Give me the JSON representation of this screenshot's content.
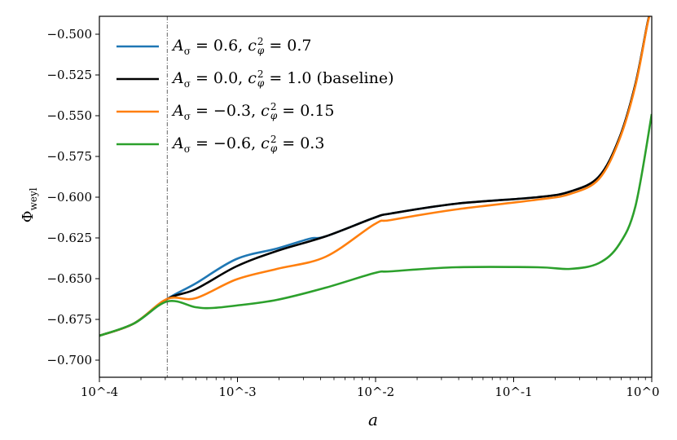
{
  "chart_data": {
    "type": "line",
    "xlabel": "a",
    "ylabel": {
      "symbol": "Φ",
      "subscript": "weyl"
    },
    "xscale": "log",
    "xlim": [
      0.0001,
      1
    ],
    "ylim": [
      -0.7105,
      -0.489
    ],
    "x_ticks": [
      "10^-4",
      "10^-3",
      "10^-2",
      "10^-1",
      "10^0"
    ],
    "y_ticks": [
      "−0.700",
      "−0.675",
      "−0.650",
      "−0.625",
      "−0.600",
      "−0.575",
      "−0.550",
      "−0.525",
      "−0.500"
    ],
    "y_tick_values": [
      -0.7,
      -0.675,
      -0.65,
      -0.625,
      -0.6,
      -0.575,
      -0.55,
      -0.525,
      -0.5
    ],
    "vline": {
      "x": 0.00031,
      "style": "dashdot",
      "color": "#555555"
    },
    "grid": false,
    "legend_placement": "top-left",
    "series": [
      {
        "name": "A_σ = 0.6, c_φ^2 = 0.7",
        "a_sigma": "0.6",
        "c_phi_sq": "0.7",
        "note": "",
        "color": "#1f77b4",
        "log10_a": [
          -4,
          -3.75,
          -3.51,
          -3.304,
          -3.009,
          -2.714,
          -2.478,
          -2.36,
          -2.006,
          -1.888,
          -1.416,
          -0.826,
          -0.59,
          -0.384,
          -0.236,
          -0.118,
          -0.029,
          0
        ],
        "y": [
          -0.685,
          -0.6775,
          -0.6625,
          -0.653,
          -0.638,
          -0.6315,
          -0.6255,
          -0.624,
          -0.6125,
          -0.61,
          -0.604,
          -0.6,
          -0.5965,
          -0.5875,
          -0.564,
          -0.5305,
          -0.4925,
          -0.485
        ]
      },
      {
        "name": "A_σ = 0.0, c_φ^2 = 1.0 (baseline)",
        "a_sigma": "0.0",
        "c_phi_sq": "1.0",
        "note": "(baseline)",
        "color": "#000000",
        "log10_a": [
          -4,
          -3.75,
          -3.51,
          -3.304,
          -3.009,
          -2.714,
          -2.36,
          -2.006,
          -1.888,
          -1.416,
          -0.826,
          -0.59,
          -0.384,
          -0.236,
          -0.118,
          -0.029,
          0
        ],
        "y": [
          -0.685,
          -0.6775,
          -0.6625,
          -0.6565,
          -0.6425,
          -0.633,
          -0.624,
          -0.6125,
          -0.61,
          -0.604,
          -0.6,
          -0.5965,
          -0.5875,
          -0.564,
          -0.5305,
          -0.4925,
          -0.485
        ]
      },
      {
        "name": "A_σ = −0.3, c_φ^2 = 0.15",
        "a_sigma": "−0.3",
        "c_phi_sq": "0.15",
        "note": "",
        "color": "#ff7f0e",
        "log10_a": [
          -4,
          -3.75,
          -3.51,
          -3.304,
          -3.009,
          -2.714,
          -2.36,
          -2.006,
          -1.888,
          -1.416,
          -0.826,
          -0.59,
          -0.384,
          -0.236,
          -0.118,
          -0.029,
          0
        ],
        "y": [
          -0.685,
          -0.6775,
          -0.6625,
          -0.662,
          -0.6505,
          -0.644,
          -0.6365,
          -0.6165,
          -0.614,
          -0.6075,
          -0.6015,
          -0.598,
          -0.589,
          -0.565,
          -0.5315,
          -0.493,
          -0.486
        ]
      },
      {
        "name": "A_σ = −0.6, c_φ^2 = 0.3",
        "a_sigma": "−0.6",
        "c_phi_sq": "0.3",
        "note": "",
        "color": "#2ca02c",
        "log10_a": [
          -4,
          -3.75,
          -3.51,
          -3.304,
          -3.186,
          -3.009,
          -2.714,
          -2.36,
          -2.006,
          -1.888,
          -1.416,
          -0.826,
          -0.59,
          -0.384,
          -0.236,
          -0.118,
          0
        ],
        "y": [
          -0.685,
          -0.6775,
          -0.664,
          -0.6675,
          -0.668,
          -0.6665,
          -0.663,
          -0.6555,
          -0.6465,
          -0.6455,
          -0.643,
          -0.643,
          -0.644,
          -0.6405,
          -0.629,
          -0.6055,
          -0.549
        ]
      }
    ]
  },
  "symbols": {
    "A": "A",
    "sigma": "σ",
    "c": "c",
    "phi": "φ",
    "sq": "2",
    "eq": " = ",
    "sep": ", "
  }
}
